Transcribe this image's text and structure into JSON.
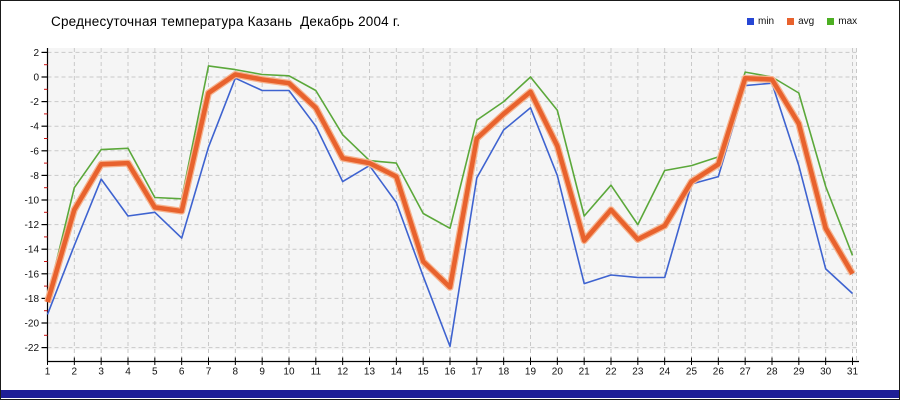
{
  "title": "Среднесуточная температура Казань  Декабрь 2004 г.",
  "legend": {
    "position": "top-right",
    "items": [
      {
        "label": "min",
        "color": "#2646d4"
      },
      {
        "label": "avg",
        "color": "#e8622d"
      },
      {
        "label": "max",
        "color": "#4caf22"
      }
    ]
  },
  "colors": {
    "page_bg": "#ffffff",
    "plot_bg": "#f5f5f5",
    "grid": "#c9c9c9",
    "axis": "#000000",
    "tick_label": "#111111",
    "minor_tick": "#cc1111",
    "avg_halo": "#f6b38e",
    "bottom_bar": "#1e1e96"
  },
  "chart_data": {
    "type": "line",
    "title": "Среднесуточная температура Казань  Декабрь 2004 г.",
    "xlabel": "",
    "ylabel": "",
    "x": [
      1,
      2,
      3,
      4,
      5,
      6,
      7,
      8,
      9,
      10,
      11,
      12,
      13,
      14,
      15,
      16,
      17,
      18,
      19,
      20,
      21,
      22,
      23,
      24,
      25,
      26,
      27,
      28,
      29,
      30,
      31
    ],
    "ylim": [
      -22,
      2
    ],
    "y_ticks": [
      2,
      0,
      -2,
      -4,
      -6,
      -8,
      -10,
      -12,
      -14,
      -16,
      -18,
      -20,
      -22
    ],
    "y_minor_ticks": [
      1,
      -1,
      -3,
      -5,
      -7,
      -9,
      -11,
      -13,
      -15,
      -17,
      -19,
      -21
    ],
    "grid": "dashed",
    "legend_position": "top-right",
    "series": [
      {
        "name": "min",
        "color": "#3e63d0",
        "width": 1.6,
        "values": [
          -19.3,
          -13.7,
          -8.3,
          -11.3,
          -11.0,
          -13.1,
          -5.7,
          -0.1,
          -1.1,
          -1.1,
          -4.0,
          -8.5,
          -7.2,
          -10.2,
          -16.2,
          -21.9,
          -8.2,
          -4.3,
          -2.5,
          -8.0,
          -16.8,
          -16.1,
          -16.3,
          -16.3,
          -8.7,
          -8.1,
          -0.7,
          -0.5,
          -7.2,
          -15.6,
          -17.6
        ]
      },
      {
        "name": "avg",
        "color": "#e8622d",
        "width": 4.5,
        "halo": true,
        "values": [
          -18.3,
          -10.8,
          -7.1,
          -7.0,
          -10.6,
          -10.9,
          -1.3,
          0.2,
          -0.2,
          -0.5,
          -2.5,
          -6.6,
          -7.0,
          -8.1,
          -15.0,
          -17.1,
          -5.0,
          -3.0,
          -1.2,
          -5.6,
          -13.3,
          -10.8,
          -13.2,
          -12.1,
          -8.5,
          -7.1,
          -0.1,
          -0.2,
          -3.8,
          -12.3,
          -16.0
        ]
      },
      {
        "name": "max",
        "color": "#5ba83a",
        "width": 1.6,
        "values": [
          -18.0,
          -9.0,
          -5.9,
          -5.8,
          -9.8,
          -9.9,
          0.9,
          0.6,
          0.2,
          0.1,
          -1.1,
          -4.7,
          -6.8,
          -7.0,
          -11.1,
          -12.3,
          -3.5,
          -2.0,
          0.0,
          -2.7,
          -11.3,
          -8.8,
          -12.0,
          -7.6,
          -7.2,
          -6.5,
          0.4,
          0.0,
          -1.3,
          -8.9,
          -14.5
        ]
      }
    ]
  }
}
